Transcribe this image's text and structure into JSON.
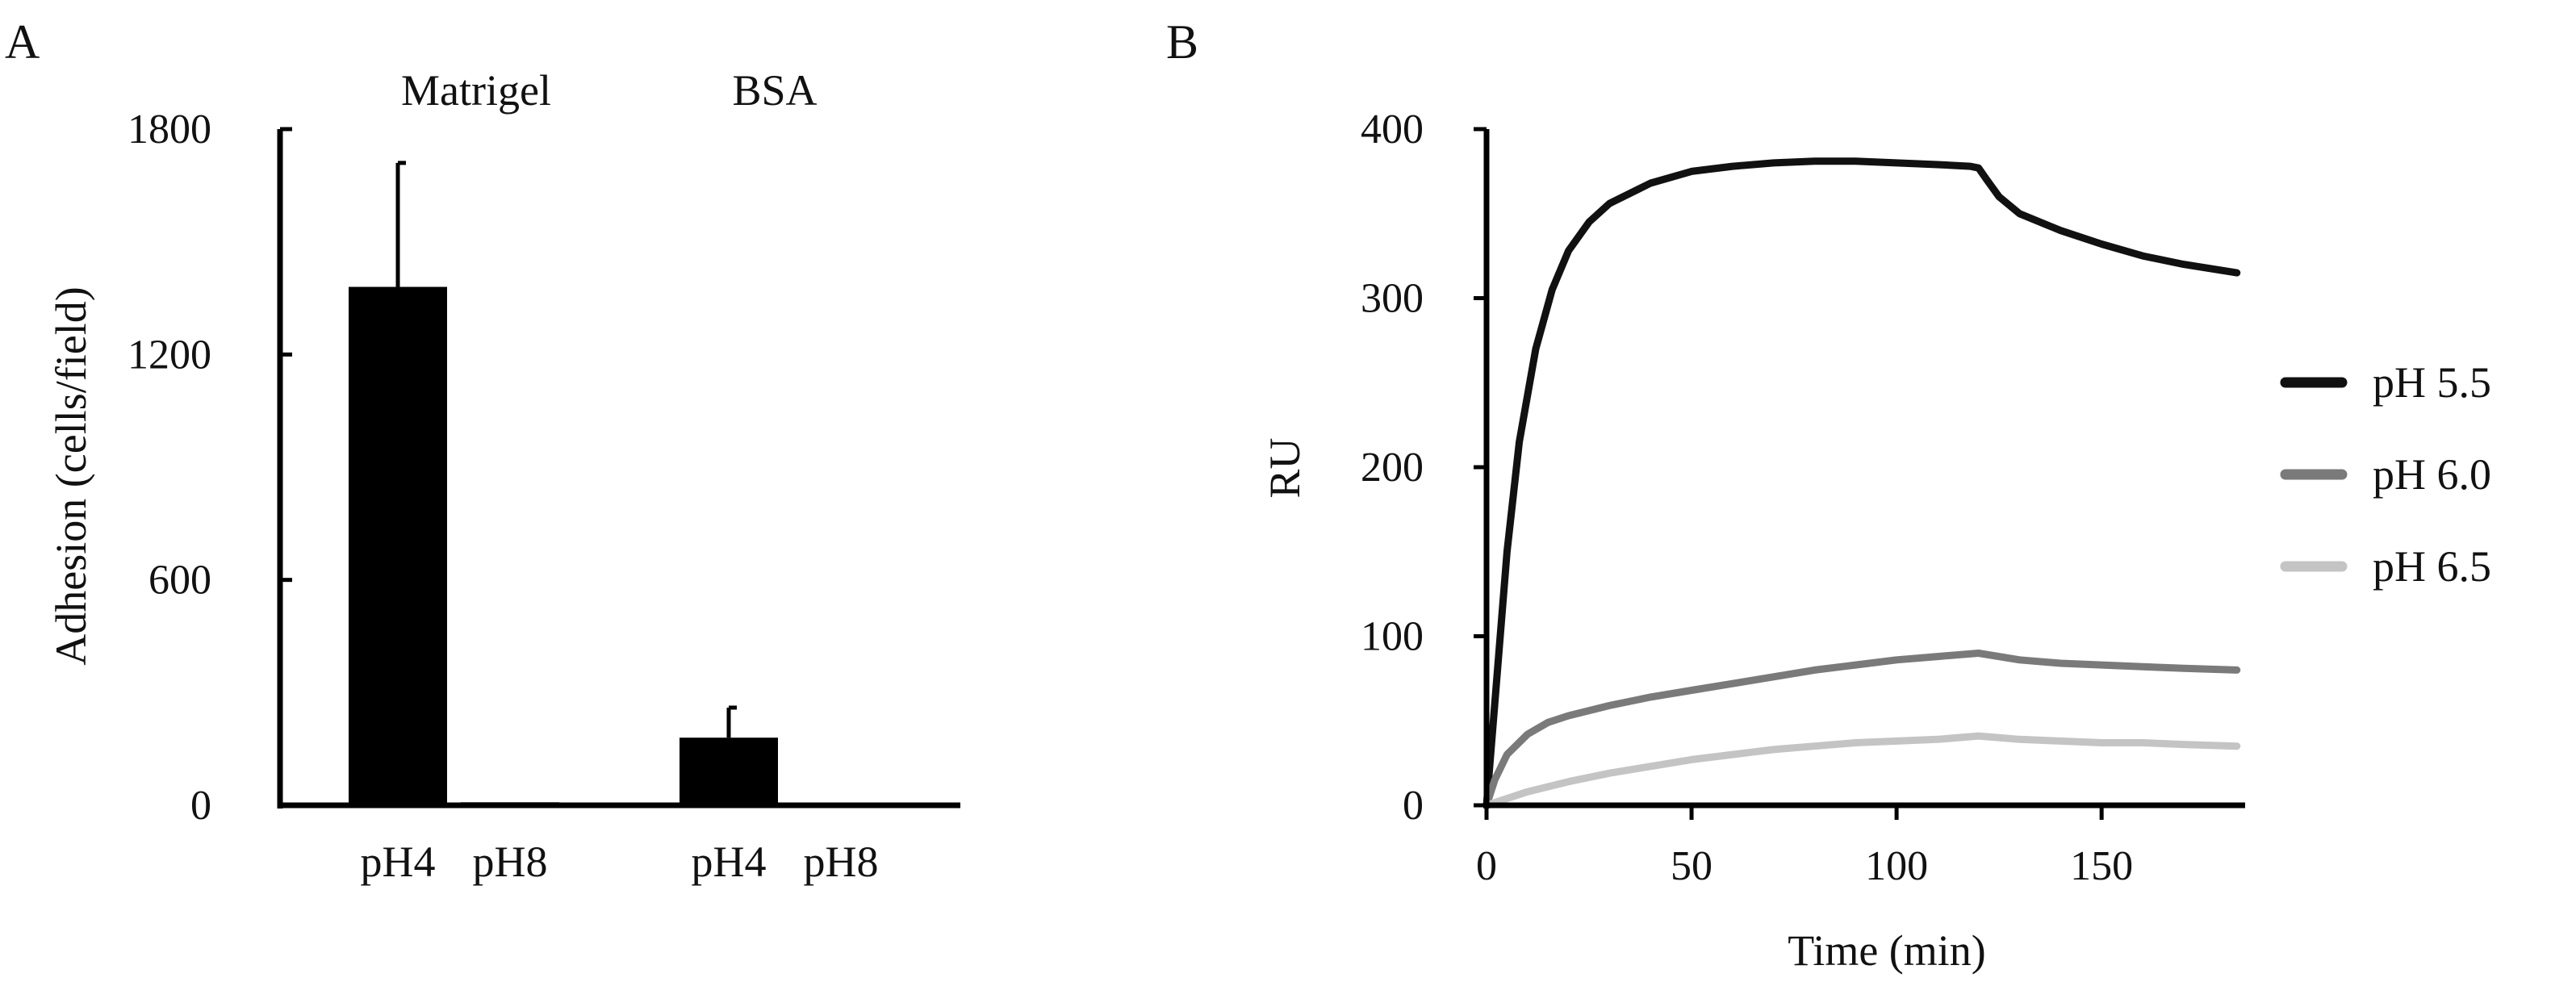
{
  "panels": {
    "a_label": "A",
    "b_label": "B"
  },
  "chart_data": [
    {
      "type": "bar",
      "panel": "A",
      "title": "",
      "xlabel": "",
      "ylabel": "Adhesion (cells/field)",
      "ylim": [
        0,
        1800
      ],
      "yticks": [
        0,
        600,
        1200,
        1800
      ],
      "groups": [
        "Matrigel",
        "BSA"
      ],
      "categories": [
        "pH4",
        "pH8",
        "pH4",
        "pH8"
      ],
      "bars": [
        {
          "group": "Matrigel",
          "label": "pH4",
          "value": 1380,
          "error": 330
        },
        {
          "group": "Matrigel",
          "label": "pH8",
          "value": 8,
          "error": 0
        },
        {
          "group": "BSA",
          "label": "pH4",
          "value": 180,
          "error": 80
        },
        {
          "group": "BSA",
          "label": "pH8",
          "value": 0,
          "error": 0
        }
      ],
      "grid": false,
      "bar_color": "#000000"
    },
    {
      "type": "line",
      "panel": "B",
      "title": "",
      "xlabel": "Time (min)",
      "ylabel": "RU",
      "xlim": [
        0,
        185
      ],
      "ylim": [
        0,
        400
      ],
      "xticks": [
        0,
        50,
        100,
        150
      ],
      "yticks": [
        0,
        100,
        200,
        300,
        400
      ],
      "grid": false,
      "legend_position": "right",
      "series": [
        {
          "name": "pH 5.5",
          "color": "#111111",
          "x": [
            0,
            2,
            5,
            8,
            12,
            16,
            20,
            25,
            30,
            40,
            50,
            60,
            70,
            80,
            90,
            100,
            110,
            118,
            120,
            122,
            125,
            130,
            140,
            150,
            160,
            170,
            183
          ],
          "y": [
            0,
            60,
            150,
            215,
            270,
            305,
            328,
            345,
            356,
            368,
            375,
            378,
            380,
            381,
            381,
            380,
            379,
            378,
            377,
            370,
            360,
            350,
            340,
            332,
            325,
            320,
            315
          ]
        },
        {
          "name": "pH 6.0",
          "color": "#7a7a7a",
          "x": [
            0,
            2,
            5,
            10,
            15,
            20,
            30,
            40,
            50,
            60,
            70,
            80,
            90,
            100,
            110,
            120,
            130,
            140,
            150,
            160,
            170,
            183
          ],
          "y": [
            0,
            15,
            30,
            42,
            49,
            53,
            59,
            64,
            68,
            72,
            76,
            80,
            83,
            86,
            88,
            90,
            86,
            84,
            83,
            82,
            81,
            80
          ]
        },
        {
          "name": "pH 6.5",
          "color": "#c4c4c4",
          "x": [
            0,
            5,
            10,
            15,
            20,
            30,
            40,
            50,
            60,
            70,
            80,
            90,
            100,
            110,
            120,
            130,
            140,
            150,
            160,
            170,
            183
          ],
          "y": [
            0,
            4,
            8,
            11,
            14,
            19,
            23,
            27,
            30,
            33,
            35,
            37,
            38,
            39,
            41,
            39,
            38,
            37,
            37,
            36,
            35
          ]
        }
      ]
    }
  ]
}
